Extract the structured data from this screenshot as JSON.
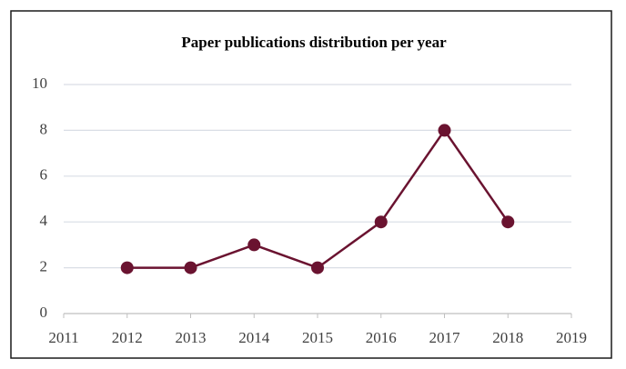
{
  "chart_data": {
    "type": "line",
    "title": "Paper publications distribution per year",
    "x": [
      2012,
      2013,
      2014,
      2015,
      2016,
      2017,
      2018
    ],
    "values": [
      2,
      2,
      3,
      2,
      4,
      8,
      4
    ],
    "color": "#6a1330",
    "xlim": [
      2011,
      2019
    ],
    "xticks": [
      2011,
      2012,
      2013,
      2014,
      2015,
      2016,
      2017,
      2018,
      2019
    ],
    "ylim": [
      0,
      10
    ],
    "yticks": [
      0,
      2,
      4,
      6,
      8,
      10
    ],
    "grid": true
  }
}
